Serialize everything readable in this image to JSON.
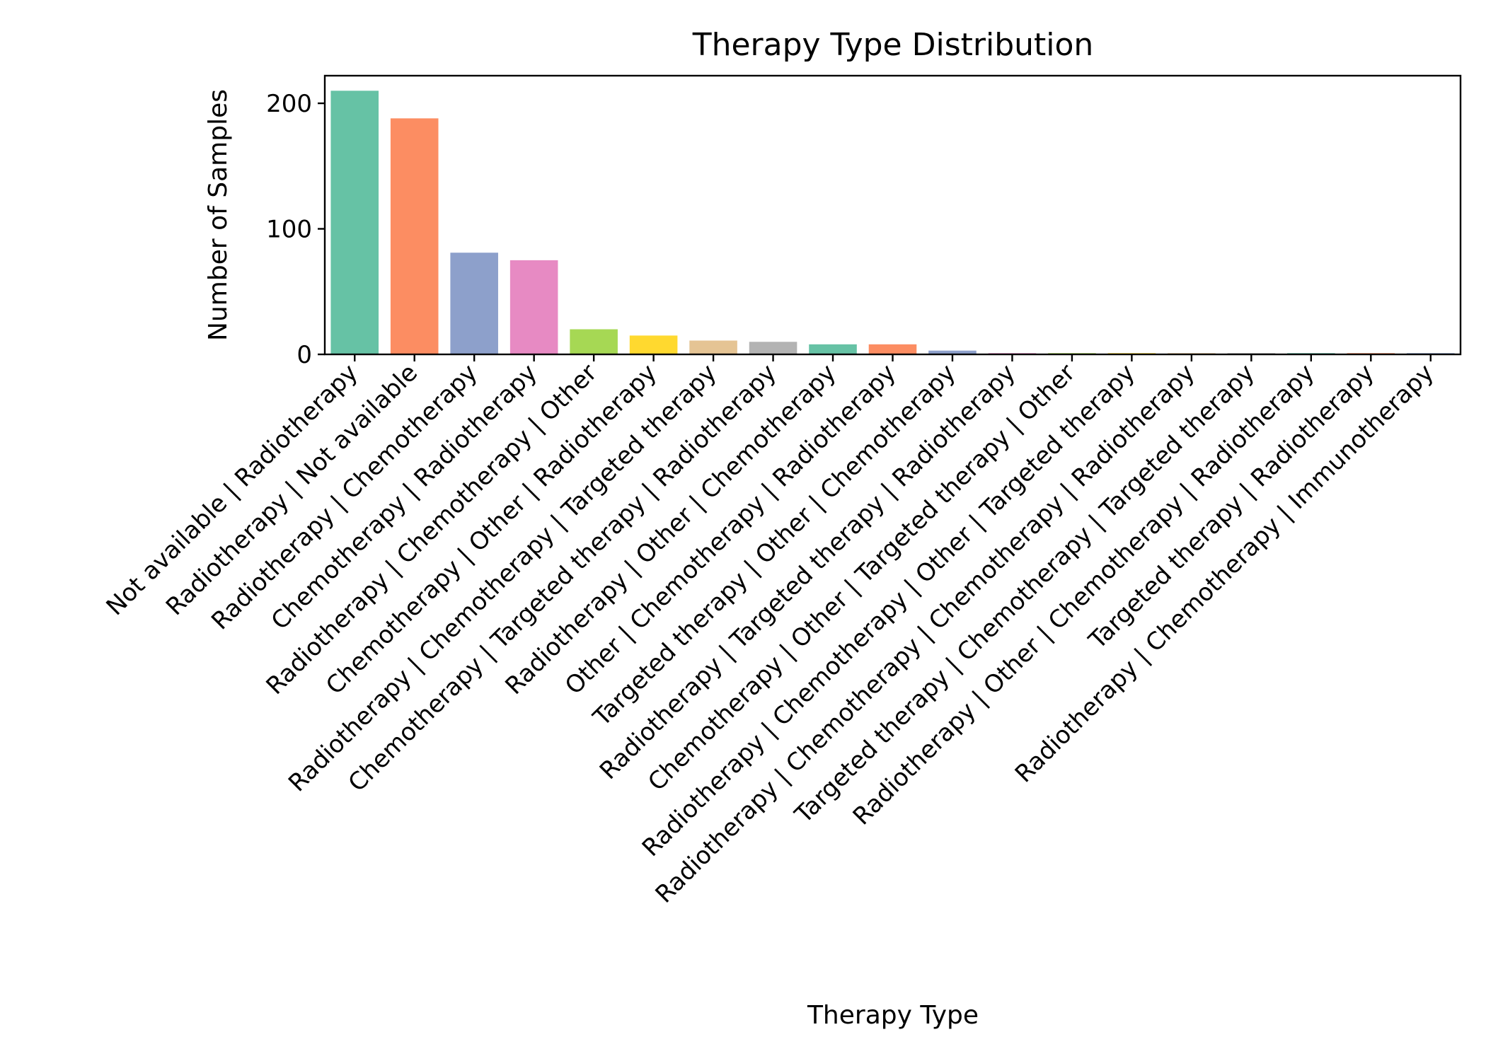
{
  "chart_data": {
    "type": "bar",
    "title": "Therapy Type Distribution",
    "xlabel": "Therapy Type",
    "ylabel": "Number of Samples",
    "ylim": [
      0,
      222
    ],
    "yticks": [
      0,
      100,
      200
    ],
    "grid": false,
    "legend": "none",
    "categories": [
      "Not available | Radiotherapy",
      "Radiotherapy | Not available",
      "Radiotherapy | Chemotherapy",
      "Chemotherapy | Radiotherapy",
      "Radiotherapy | Chemotherapy | Other",
      "Chemotherapy | Other | Radiotherapy",
      "Radiotherapy | Chemotherapy | Targeted therapy",
      "Chemotherapy | Targeted therapy | Radiotherapy",
      "Radiotherapy | Other | Chemotherapy",
      "Other | Chemotherapy | Radiotherapy",
      "Targeted therapy | Other | Chemotherapy",
      "Radiotherapy | Targeted therapy | Radiotherapy",
      "Chemotherapy | Other | Targeted therapy | Other",
      "Radiotherapy | Chemotherapy | Other | Targeted therapy",
      "Radiotherapy | Chemotherapy | Chemotherapy | Radiotherapy",
      "Targeted therapy | Chemotherapy | Targeted therapy",
      "Radiotherapy | Other | Chemotherapy | Radiotherapy",
      "Targeted therapy | Radiotherapy",
      "Radiotherapy | Chemotherapy | Immunotherapy"
    ],
    "values": [
      210,
      188,
      81,
      75,
      20,
      15,
      11,
      10,
      8,
      8,
      3,
      1,
      1,
      1,
      1,
      1,
      1,
      1,
      1
    ],
    "colors": [
      "#66c2a5",
      "#fc8d62",
      "#8da0cb",
      "#e78ac3",
      "#a6d854",
      "#ffd92f",
      "#e5c494",
      "#b3b3b3",
      "#66c2a5",
      "#fc8d62",
      "#8da0cb",
      "#e78ac3",
      "#a6d854",
      "#ffd92f",
      "#e5c494",
      "#b3b3b3",
      "#66c2a5",
      "#fc8d62",
      "#8da0cb"
    ]
  }
}
